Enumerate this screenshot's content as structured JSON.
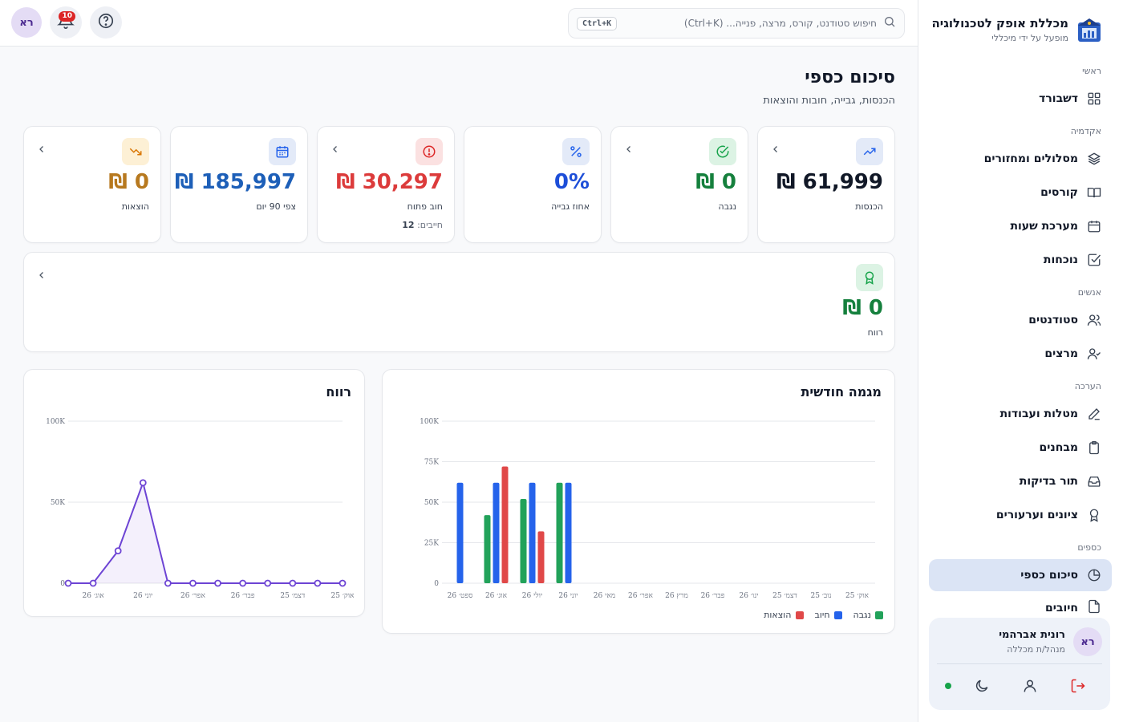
{
  "brand": {
    "title": "מכללת אופק לטכנולוגיה",
    "subtitle": "מופעל על ידי מיכללי"
  },
  "sidebar": {
    "sections": [
      "ראשי",
      "אקדמיה",
      "אנשים",
      "הערכה",
      "כספים"
    ],
    "items": [
      {
        "label": "דשבורד",
        "icon": "grid-icon"
      },
      {
        "label": "מסלולים ומחזורים",
        "icon": "layers-icon"
      },
      {
        "label": "קורסים",
        "icon": "book-icon"
      },
      {
        "label": "מערכת שעות",
        "icon": "calendar-icon"
      },
      {
        "label": "נוכחות",
        "icon": "checkbox-icon"
      },
      {
        "label": "סטודנטים",
        "icon": "users-icon"
      },
      {
        "label": "מרצים",
        "icon": "user-check-icon"
      },
      {
        "label": "מטלות ועבודות",
        "icon": "pencil-icon"
      },
      {
        "label": "מבחנים",
        "icon": "clipboard-icon"
      },
      {
        "label": "תור בדיקות",
        "icon": "inbox-icon"
      },
      {
        "label": "ציונים וערעורים",
        "icon": "award-icon"
      },
      {
        "label": "סיכום כספי",
        "icon": "pie-chart-icon",
        "active": true
      },
      {
        "label": "חיובים",
        "icon": "file-icon"
      }
    ]
  },
  "user": {
    "initials": "רא",
    "name": "רונית אברהמי",
    "role": "מנהל/ת מכללה"
  },
  "topbar": {
    "search_placeholder": "חיפוש סטודנט, קורס, מרצה, פנייה... (Ctrl+K)",
    "shortcut": "Ctrl+K",
    "notifications_count": "10",
    "avatar_initials": "רא"
  },
  "page": {
    "title": "סיכום כספי",
    "subtitle": "הכנסות, גבייה, חובות והוצאות"
  },
  "stats": [
    {
      "label": "הכנסות",
      "value": "61,999 ₪",
      "color": "#111827",
      "icon": "trending-up-icon",
      "icon_bg": "#e3eaf8",
      "icon_color": "#2563eb"
    },
    {
      "label": "נגבה",
      "value": "0 ₪",
      "color": "#15803d",
      "icon": "check-circle-icon",
      "icon_bg": "#dcf3e4",
      "icon_color": "#16a34a"
    },
    {
      "label": "אחוז גבייה",
      "value": "0%",
      "color": "#1d4ed8",
      "icon": "percent-icon",
      "icon_bg": "#e3eaf8",
      "icon_color": "#2563eb"
    },
    {
      "label": "חוב פתוח",
      "value": "30,297 ₪",
      "color": "#dc3b3b",
      "icon": "alert-circle-icon",
      "icon_bg": "#fbe1e1",
      "icon_color": "#dc2626",
      "extra_label": "חייבים:",
      "extra_value": "12"
    },
    {
      "label": "צפי 90 יום",
      "value": "185,997 ₪",
      "color": "#1d5fb8",
      "icon": "calendar-icon",
      "icon_bg": "#e3eaf8",
      "icon_color": "#2563eb"
    },
    {
      "label": "הוצאות",
      "value": "0 ₪",
      "color": "#b7791f",
      "icon": "trending-down-icon",
      "icon_bg": "#fdf0d5",
      "icon_color": "#d97706"
    }
  ],
  "profit_card": {
    "label": "רווח",
    "value": "0 ₪",
    "color": "#15803d",
    "icon": "award-icon"
  },
  "charts": {
    "trend_title": "מגמה חודשית",
    "profit_title": "רווח",
    "legend": [
      "נגבה",
      "חיוב",
      "הוצאות"
    ]
  },
  "chart_data": [
    {
      "type": "bar",
      "title": "מגמה חודשית",
      "categories": [
        "אוק׳ 25",
        "נוב׳ 25",
        "דצמ׳ 25",
        "ינו׳ 26",
        "פבר׳ 26",
        "מרץ 26",
        "אפר׳ 26",
        "מאי 26",
        "יוני 26",
        "יולי 26",
        "אוג׳ 26",
        "ספט׳ 26"
      ],
      "series": [
        {
          "name": "נגבה",
          "color": "#22a25a",
          "values": [
            0,
            0,
            0,
            0,
            0,
            0,
            0,
            0,
            62000,
            52000,
            42000,
            0
          ]
        },
        {
          "name": "חיוב",
          "color": "#2563eb",
          "values": [
            0,
            0,
            0,
            0,
            0,
            0,
            0,
            0,
            62000,
            62000,
            62000,
            62000
          ]
        },
        {
          "name": "הוצאות",
          "color": "#e04848",
          "values": [
            0,
            0,
            0,
            0,
            0,
            0,
            0,
            0,
            0,
            32000,
            72000,
            0
          ]
        }
      ],
      "yticks": [
        "0",
        "25K",
        "50K",
        "75K",
        "100K"
      ],
      "ylim": [
        0,
        100000
      ]
    },
    {
      "type": "area",
      "title": "רווח",
      "categories": [
        "אוק׳ 25",
        "נוב׳ 25",
        "דצמ׳ 25",
        "ינו׳ 26",
        "פבר׳ 26",
        "מרץ 26",
        "אפר׳ 26",
        "מאי 26",
        "יוני 26",
        "יולי 26",
        "אוג׳ 26",
        "ספט׳ 26"
      ],
      "xtick_labels": [
        "אוק׳ 25",
        "דצמ׳ 25",
        "פבר׳ 26",
        "אפר׳ 26",
        "יוני 26",
        "אוג׳ 26"
      ],
      "series": [
        {
          "color": "#6d44d4",
          "values": [
            0,
            0,
            0,
            0,
            0,
            0,
            0,
            0,
            62000,
            20000,
            0,
            0
          ]
        }
      ],
      "yticks": [
        "0",
        "50K",
        "100K"
      ],
      "ylim": [
        0,
        100000
      ]
    }
  ]
}
